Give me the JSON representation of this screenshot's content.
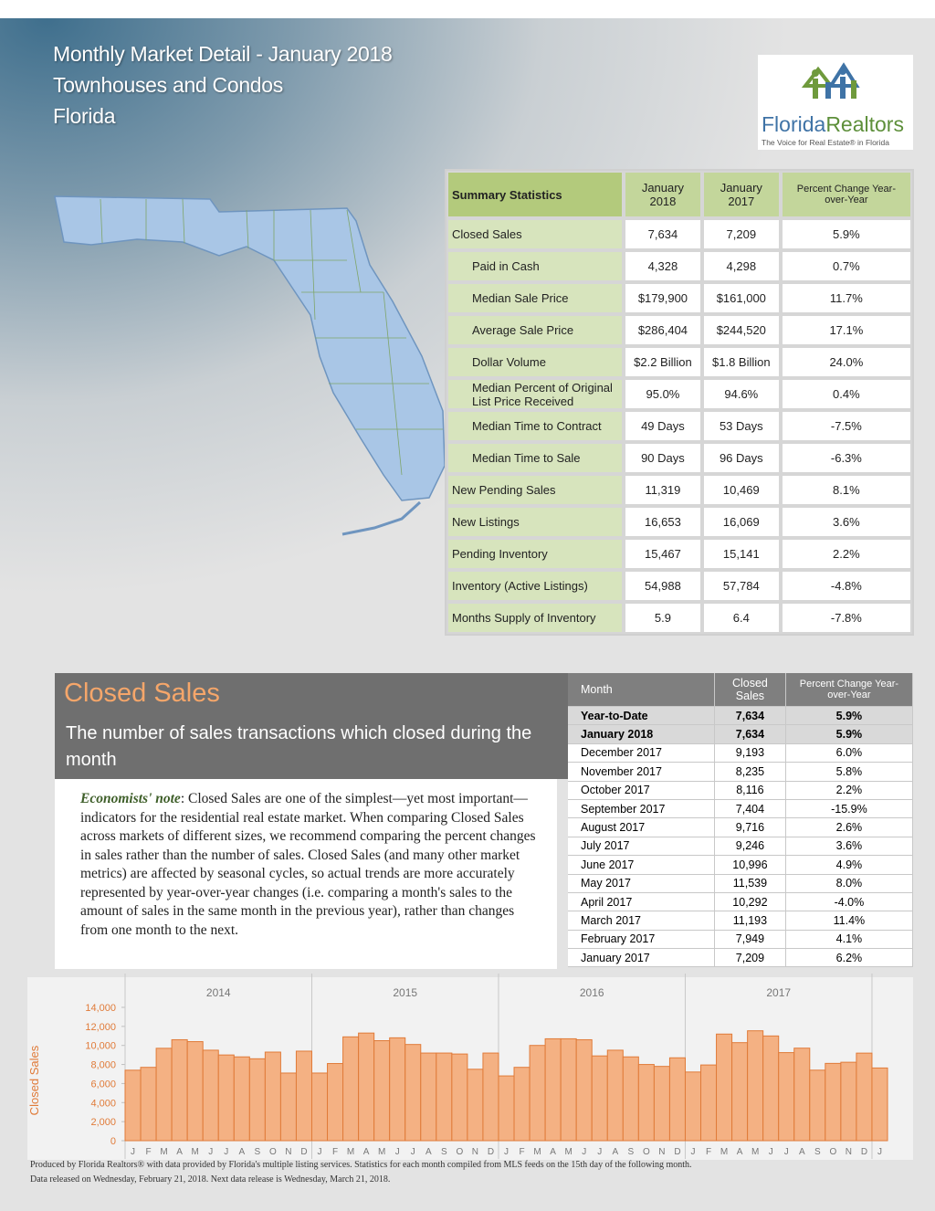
{
  "header": {
    "lines": [
      "Monthly Market Detail - January 2018",
      "Townhouses and Condos",
      "Florida"
    ]
  },
  "logo": {
    "brand_1": "Florida",
    "brand_2": "Realtors",
    "tagline": "The Voice for Real Estate® in Florida"
  },
  "summary": {
    "header": [
      "Summary Statistics",
      "January 2018",
      "January 2017",
      "Percent Change Year-over-Year"
    ],
    "rows": [
      {
        "cells": [
          "Closed Sales",
          "7,634",
          "7,209",
          "5.9%"
        ],
        "indent": false
      },
      {
        "cells": [
          "Paid in Cash",
          "4,328",
          "4,298",
          "0.7%"
        ],
        "indent": true
      },
      {
        "cells": [
          "Median Sale Price",
          "$179,900",
          "$161,000",
          "11.7%"
        ],
        "indent": true
      },
      {
        "cells": [
          "Average Sale Price",
          "$286,404",
          "$244,520",
          "17.1%"
        ],
        "indent": true
      },
      {
        "cells": [
          "Dollar Volume",
          "$2.2 Billion",
          "$1.8 Billion",
          "24.0%"
        ],
        "indent": true
      },
      {
        "cells": [
          "Median Percent of Original List Price Received",
          "95.0%",
          "94.6%",
          "0.4%"
        ],
        "indent": true
      },
      {
        "cells": [
          "Median Time to Contract",
          "49 Days",
          "53 Days",
          "-7.5%"
        ],
        "indent": true
      },
      {
        "cells": [
          "Median Time to Sale",
          "90 Days",
          "96 Days",
          "-6.3%"
        ],
        "indent": true
      },
      {
        "cells": [
          "New Pending Sales",
          "11,319",
          "10,469",
          "8.1%"
        ],
        "indent": false
      },
      {
        "cells": [
          "New Listings",
          "16,653",
          "16,069",
          "3.6%"
        ],
        "indent": false
      },
      {
        "cells": [
          "Pending Inventory",
          "15,467",
          "15,141",
          "2.2%"
        ],
        "indent": false
      },
      {
        "cells": [
          "Inventory (Active Listings)",
          "54,988",
          "57,784",
          "-4.8%"
        ],
        "indent": false
      },
      {
        "cells": [
          "Months Supply of Inventory",
          "5.9",
          "6.4",
          "-7.8%"
        ],
        "indent": false
      }
    ]
  },
  "section": {
    "title": "Closed Sales",
    "description": "The number of sales transactions which closed during the month",
    "note_label": "Economists' note",
    "note_text": ":  Closed Sales are one of the simplest—yet most important—indicators for the residential real estate market.  When comparing Closed Sales across markets of different sizes, we recommend comparing the percent changes in sales rather than the number of sales.  Closed Sales (and many other market metrics) are affected by seasonal cycles, so actual trends are more accurately represented by year-over-year changes (i.e. comparing a month's sales to the amount of sales in the same month in the previous year), rather than changes from one month to the next."
  },
  "monthly": {
    "header": [
      "Month",
      "Closed Sales",
      "Percent Change Year-over-Year"
    ],
    "rows": [
      {
        "cells": [
          "Year-to-Date",
          "7,634",
          "5.9%"
        ],
        "bold": true
      },
      {
        "cells": [
          "January 2018",
          "7,634",
          "5.9%"
        ],
        "bold": true
      },
      {
        "cells": [
          "December 2017",
          "9,193",
          "6.0%"
        ],
        "bold": false
      },
      {
        "cells": [
          "November 2017",
          "8,235",
          "5.8%"
        ],
        "bold": false
      },
      {
        "cells": [
          "October 2017",
          "8,116",
          "2.2%"
        ],
        "bold": false
      },
      {
        "cells": [
          "September 2017",
          "7,404",
          "-15.9%"
        ],
        "bold": false
      },
      {
        "cells": [
          "August 2017",
          "9,716",
          "2.6%"
        ],
        "bold": false
      },
      {
        "cells": [
          "July 2017",
          "9,246",
          "3.6%"
        ],
        "bold": false
      },
      {
        "cells": [
          "June 2017",
          "10,996",
          "4.9%"
        ],
        "bold": false
      },
      {
        "cells": [
          "May 2017",
          "11,539",
          "8.0%"
        ],
        "bold": false
      },
      {
        "cells": [
          "April 2017",
          "10,292",
          "-4.0%"
        ],
        "bold": false
      },
      {
        "cells": [
          "March 2017",
          "11,193",
          "11.4%"
        ],
        "bold": false
      },
      {
        "cells": [
          "February 2017",
          "7,949",
          "4.1%"
        ],
        "bold": false
      },
      {
        "cells": [
          "January 2017",
          "7,209",
          "6.2%"
        ],
        "bold": false
      }
    ]
  },
  "chart_data": {
    "type": "bar",
    "y_label": "Closed Sales",
    "years": [
      "2014",
      "2015",
      "2016",
      "2017"
    ],
    "categories": [
      "J",
      "F",
      "M",
      "A",
      "M",
      "J",
      "J",
      "A",
      "S",
      "O",
      "N",
      "D",
      "J",
      "F",
      "M",
      "A",
      "M",
      "J",
      "J",
      "A",
      "S",
      "O",
      "N",
      "D",
      "J",
      "F",
      "M",
      "A",
      "M",
      "J",
      "J",
      "A",
      "S",
      "O",
      "N",
      "D",
      "J",
      "F",
      "M",
      "A",
      "M",
      "J",
      "J",
      "A",
      "S",
      "O",
      "N",
      "D",
      "J"
    ],
    "values": [
      7400,
      7700,
      9700,
      10600,
      10400,
      9500,
      9000,
      8800,
      8600,
      9300,
      7100,
      9400,
      7100,
      8100,
      10900,
      11300,
      10500,
      10800,
      10100,
      9200,
      9200,
      9100,
      7500,
      9200,
      6800,
      7700,
      10000,
      10700,
      10700,
      10600,
      8900,
      9500,
      8800,
      8000,
      7800,
      8700,
      7209,
      7949,
      11193,
      10292,
      11539,
      10996,
      9246,
      9716,
      7404,
      8116,
      8235,
      9193,
      7634
    ],
    "color": "#f4b183",
    "ylim": [
      0,
      14000
    ],
    "yticks": [
      0,
      {
        "value": 2000,
        "label": "2,000"
      },
      {
        "value": 4000,
        "label": "4,000"
      },
      {
        "value": 6000,
        "label": "6,000"
      },
      {
        "value": 8000,
        "label": "8,000"
      },
      {
        "value": 10000,
        "label": "10,000"
      },
      {
        "value": 12000,
        "label": "12,000"
      },
      {
        "value": 14000,
        "label": "14,000"
      }
    ]
  },
  "footer": {
    "lines": [
      "Produced by Florida Realtors® with data provided by Florida's multiple listing services. Statistics for each month compiled from MLS feeds on the 15th day of the following month.",
      "Data released on Wednesday, February 21, 2018. Next data release is Wednesday, March 21, 2018."
    ]
  }
}
